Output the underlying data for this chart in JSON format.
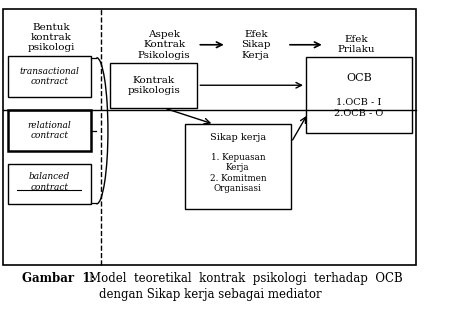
{
  "title_bold": "Gambar  1:",
  "title_normal": "Model  teoretikal  kontrak  psikologi  terhadap  OCB",
  "title_line2": "dengan Sikap kerja sebagai mediator",
  "bg_color": "#ffffff",
  "border_color": "#000000",
  "header_col1": "Bentuk\nkontrak\npsikologi",
  "header_col2": "Aspek\nKontrak\nPsikologis",
  "header_col3": "Efek\nSikap\nKerja",
  "header_col4": "Efek\nPrilaku",
  "box_transactional": "transactional\ncontract",
  "box_relational": "relational\ncontract",
  "box_balanced": "balanced\ncontract",
  "box_kontrak": "Kontrak\npsikologis",
  "box_sikap_title": "Sikap kerja",
  "box_sikap_body": "1. Kepuasan\nKerja\n2. Komitmen\nOrganisasi",
  "box_ocb_title": "OCB",
  "box_ocb_body": "1.OCB - I\n2.OCB - O",
  "figsize": [
    4.55,
    3.1
  ],
  "dpi": 100
}
